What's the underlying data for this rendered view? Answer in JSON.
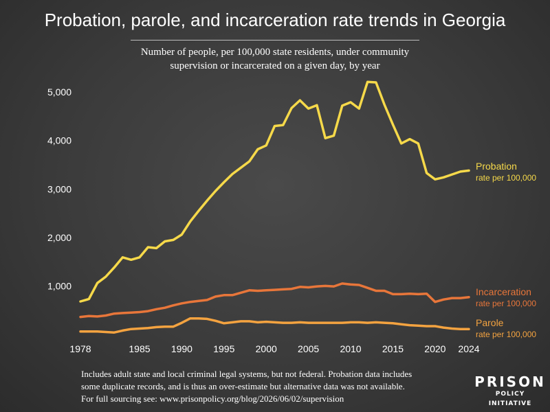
{
  "title": "Probation, parole, and incarceration rate trends in Georgia",
  "subtitle_lines": [
    "Number of people, per 100,000 state residents, under community",
    "supervision or incarcerated on a given day, by year"
  ],
  "footnote_lines": [
    "Includes adult state and local criminal legal systems, but not federal. Probation data includes",
    "some duplicate records, and is thus an over-estimate but alternative data was not available.",
    "For full sourcing see: www.prisonpolicy.org/blog/2026/06/02/supervision"
  ],
  "logo": {
    "top": "PRISON",
    "bottom": "POLICY INITIATIVE"
  },
  "chart_data": {
    "type": "line",
    "title": "",
    "xlabel": "",
    "ylabel": "",
    "xlim": [
      1978,
      2024
    ],
    "ylim": [
      0,
      5200
    ],
    "grid": false,
    "x_ticks": [
      1978,
      1985,
      1990,
      1995,
      2000,
      2005,
      2010,
      2015,
      2020,
      2024
    ],
    "y_ticks": [
      1000,
      2000,
      3000,
      4000,
      5000
    ],
    "y_tick_labels": [
      "1,000",
      "2,000",
      "3,000",
      "4,000",
      "5,000"
    ],
    "x": [
      1978,
      1979,
      1980,
      1981,
      1982,
      1983,
      1984,
      1985,
      1986,
      1987,
      1988,
      1989,
      1990,
      1991,
      1992,
      1993,
      1994,
      1995,
      1996,
      1997,
      1998,
      1999,
      2000,
      2001,
      2002,
      2003,
      2004,
      2005,
      2006,
      2007,
      2008,
      2009,
      2010,
      2011,
      2012,
      2013,
      2014,
      2015,
      2016,
      2017,
      2018,
      2019,
      2020,
      2021,
      2022,
      2023,
      2024
    ],
    "series": [
      {
        "name": "Probation",
        "sublabel": "rate per 100,000",
        "color": "#f6d94a",
        "values": [
          680,
          730,
          1060,
          1190,
          1380,
          1590,
          1540,
          1590,
          1800,
          1780,
          1920,
          1950,
          2060,
          2330,
          2550,
          2760,
          2960,
          3140,
          3310,
          3440,
          3570,
          3820,
          3900,
          4300,
          4320,
          4670,
          4830,
          4660,
          4730,
          4050,
          4100,
          4720,
          4790,
          4660,
          5210,
          5200,
          4740,
          4330,
          3940,
          4030,
          3940,
          3330,
          3200,
          3240,
          3300,
          3360,
          3380
        ]
      },
      {
        "name": "Incarceration",
        "sublabel": "rate per 100,000",
        "color": "#e8763a",
        "values": [
          360,
          380,
          370,
          390,
          430,
          440,
          450,
          460,
          480,
          520,
          550,
          600,
          640,
          670,
          690,
          710,
          780,
          810,
          810,
          860,
          910,
          900,
          910,
          920,
          930,
          940,
          980,
          970,
          990,
          1000,
          990,
          1050,
          1030,
          1020,
          960,
          900,
          900,
          830,
          830,
          840,
          830,
          840,
          670,
          720,
          750,
          750,
          770
        ]
      },
      {
        "name": "Parole",
        "sublabel": "rate per 100,000",
        "color": "#f4a340",
        "values": [
          60,
          60,
          60,
          50,
          40,
          80,
          110,
          120,
          130,
          150,
          160,
          160,
          240,
          330,
          330,
          320,
          280,
          230,
          250,
          270,
          270,
          250,
          260,
          250,
          240,
          240,
          250,
          240,
          240,
          240,
          240,
          240,
          250,
          250,
          240,
          250,
          240,
          230,
          210,
          190,
          180,
          170,
          170,
          140,
          120,
          110,
          110
        ]
      }
    ]
  }
}
